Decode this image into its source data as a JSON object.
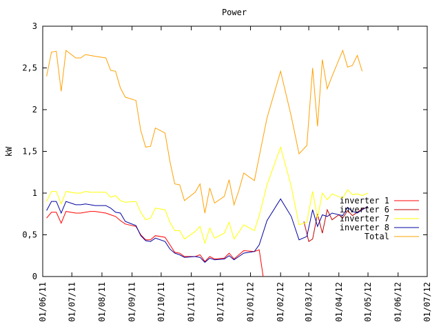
{
  "chart_data": {
    "type": "line",
    "title": "Power",
    "xlabel": "",
    "ylabel": "kW",
    "ylim": [
      0,
      3
    ],
    "yticks": [
      "0",
      "0,5",
      "1",
      "1,5",
      "2",
      "2,5",
      "3"
    ],
    "yticks_values": [
      0,
      0.5,
      1,
      1.5,
      2,
      2.5,
      3
    ],
    "xlim": [
      "2011-06-01",
      "2012-07-01"
    ],
    "xticks": [
      "01/06/11",
      "01/07/11",
      "01/08/11",
      "01/09/11",
      "01/10/11",
      "01/11/11",
      "01/12/11",
      "01/01/12",
      "01/02/12",
      "01/03/12",
      "01/04/12",
      "01/05/12",
      "01/06/12",
      "01/07/12"
    ],
    "xticks_dates": [
      "2011-06-01",
      "2011-07-01",
      "2011-08-01",
      "2011-09-01",
      "2011-10-01",
      "2011-11-01",
      "2011-12-01",
      "2012-01-01",
      "2012-02-01",
      "2012-03-01",
      "2012-04-01",
      "2012-05-01",
      "2012-06-01",
      "2012-07-01"
    ],
    "grid": false,
    "legend_position": "right",
    "series": [
      {
        "name": "inverter 1",
        "color": "#ff0000",
        "points": [
          [
            "2011-06-05",
            0.7
          ],
          [
            "2011-06-10",
            0.77
          ],
          [
            "2011-06-15",
            0.77
          ],
          [
            "2011-06-20",
            0.64
          ],
          [
            "2011-06-25",
            0.78
          ],
          [
            "2011-07-05",
            0.76
          ],
          [
            "2011-07-10",
            0.76
          ],
          [
            "2011-07-15",
            0.77
          ],
          [
            "2011-07-20",
            0.78
          ],
          [
            "2011-07-25",
            0.78
          ],
          [
            "2011-08-05",
            0.76
          ],
          [
            "2011-08-10",
            0.74
          ],
          [
            "2011-08-15",
            0.72
          ],
          [
            "2011-08-20",
            0.67
          ],
          [
            "2011-08-25",
            0.63
          ],
          [
            "2011-09-05",
            0.6
          ],
          [
            "2011-09-10",
            0.5
          ],
          [
            "2011-09-15",
            0.44
          ],
          [
            "2011-09-20",
            0.44
          ],
          [
            "2011-09-25",
            0.49
          ],
          [
            "2011-10-05",
            0.47
          ],
          [
            "2011-10-10",
            0.38
          ],
          [
            "2011-10-15",
            0.29
          ],
          [
            "2011-10-20",
            0.28
          ],
          [
            "2011-10-25",
            0.24
          ],
          [
            "2011-11-05",
            0.24
          ],
          [
            "2011-11-10",
            0.26
          ],
          [
            "2011-11-15",
            0.18
          ],
          [
            "2011-11-20",
            0.24
          ],
          [
            "2011-11-25",
            0.21
          ],
          [
            "2011-12-05",
            0.22
          ],
          [
            "2011-12-10",
            0.28
          ],
          [
            "2011-12-15",
            0.21
          ],
          [
            "2011-12-20",
            0.26
          ],
          [
            "2011-12-25",
            0.31
          ],
          [
            "2012-01-05",
            0.3
          ],
          [
            "2012-01-10",
            0.32
          ],
          [
            "2012-01-14",
            0.0
          ]
        ]
      },
      {
        "name": "inverter 6",
        "color": "#c00000",
        "points": [
          [
            "2012-02-25",
            0.66
          ],
          [
            "2012-03-01",
            0.42
          ],
          [
            "2012-03-05",
            0.45
          ],
          [
            "2012-03-10",
            0.75
          ],
          [
            "2012-03-15",
            0.52
          ],
          [
            "2012-03-20",
            0.8
          ],
          [
            "2012-03-25",
            0.68
          ],
          [
            "2012-04-01",
            0.74
          ],
          [
            "2012-04-05",
            0.7
          ],
          [
            "2012-04-10",
            0.79
          ],
          [
            "2012-04-15",
            0.73
          ],
          [
            "2012-04-20",
            0.77
          ],
          [
            "2012-04-25",
            0.81
          ],
          [
            "2012-05-01",
            0.83
          ]
        ]
      },
      {
        "name": "inverter 7",
        "color": "#ffff00",
        "points": [
          [
            "2011-06-05",
            0.9
          ],
          [
            "2011-06-10",
            1.02
          ],
          [
            "2011-06-15",
            1.02
          ],
          [
            "2011-06-20",
            0.87
          ],
          [
            "2011-06-25",
            1.02
          ],
          [
            "2011-07-05",
            1.0
          ],
          [
            "2011-07-10",
            1.0
          ],
          [
            "2011-07-15",
            1.02
          ],
          [
            "2011-07-20",
            1.01
          ],
          [
            "2011-07-25",
            1.01
          ],
          [
            "2011-08-05",
            1.01
          ],
          [
            "2011-08-10",
            0.95
          ],
          [
            "2011-08-15",
            0.97
          ],
          [
            "2011-08-20",
            0.91
          ],
          [
            "2011-08-25",
            0.89
          ],
          [
            "2011-09-05",
            0.9
          ],
          [
            "2011-09-10",
            0.77
          ],
          [
            "2011-09-15",
            0.68
          ],
          [
            "2011-09-20",
            0.7
          ],
          [
            "2011-09-25",
            0.82
          ],
          [
            "2011-10-05",
            0.8
          ],
          [
            "2011-10-10",
            0.65
          ],
          [
            "2011-10-15",
            0.55
          ],
          [
            "2011-10-20",
            0.55
          ],
          [
            "2011-10-25",
            0.45
          ],
          [
            "2011-11-05",
            0.54
          ],
          [
            "2011-11-10",
            0.6
          ],
          [
            "2011-11-15",
            0.4
          ],
          [
            "2011-11-20",
            0.58
          ],
          [
            "2011-11-25",
            0.46
          ],
          [
            "2011-12-05",
            0.52
          ],
          [
            "2011-12-10",
            0.65
          ],
          [
            "2011-12-15",
            0.45
          ],
          [
            "2011-12-20",
            0.53
          ],
          [
            "2011-12-25",
            0.62
          ],
          [
            "2012-01-05",
            0.55
          ],
          [
            "2012-01-10",
            0.73
          ],
          [
            "2012-01-18",
            1.1
          ],
          [
            "2012-02-01",
            1.55
          ],
          [
            "2012-02-12",
            1.08
          ],
          [
            "2012-02-20",
            0.62
          ],
          [
            "2012-02-28",
            0.65
          ],
          [
            "2012-03-05",
            1.02
          ],
          [
            "2012-03-10",
            0.7
          ],
          [
            "2012-03-15",
            1.0
          ],
          [
            "2012-03-20",
            0.92
          ],
          [
            "2012-03-25",
            0.99
          ],
          [
            "2012-04-05",
            0.94
          ],
          [
            "2012-04-10",
            1.04
          ],
          [
            "2012-04-15",
            0.98
          ],
          [
            "2012-04-20",
            0.99
          ],
          [
            "2012-04-25",
            0.97
          ],
          [
            "2012-05-01",
            1.0
          ]
        ]
      },
      {
        "name": "inverter 8",
        "color": "#0000a0",
        "points": [
          [
            "2011-06-05",
            0.79
          ],
          [
            "2011-06-10",
            0.9
          ],
          [
            "2011-06-15",
            0.9
          ],
          [
            "2011-06-20",
            0.76
          ],
          [
            "2011-06-25",
            0.9
          ],
          [
            "2011-07-05",
            0.86
          ],
          [
            "2011-07-10",
            0.86
          ],
          [
            "2011-07-15",
            0.87
          ],
          [
            "2011-07-20",
            0.86
          ],
          [
            "2011-07-25",
            0.85
          ],
          [
            "2011-08-05",
            0.85
          ],
          [
            "2011-08-10",
            0.82
          ],
          [
            "2011-08-15",
            0.77
          ],
          [
            "2011-08-20",
            0.76
          ],
          [
            "2011-08-25",
            0.66
          ],
          [
            "2011-09-05",
            0.61
          ],
          [
            "2011-09-10",
            0.49
          ],
          [
            "2011-09-15",
            0.43
          ],
          [
            "2011-09-20",
            0.42
          ],
          [
            "2011-09-25",
            0.46
          ],
          [
            "2011-10-05",
            0.42
          ],
          [
            "2011-10-10",
            0.33
          ],
          [
            "2011-10-15",
            0.28
          ],
          [
            "2011-10-20",
            0.26
          ],
          [
            "2011-10-25",
            0.23
          ],
          [
            "2011-11-05",
            0.24
          ],
          [
            "2011-11-10",
            0.23
          ],
          [
            "2011-11-15",
            0.17
          ],
          [
            "2011-11-20",
            0.22
          ],
          [
            "2011-11-25",
            0.2
          ],
          [
            "2011-12-05",
            0.21
          ],
          [
            "2011-12-10",
            0.25
          ],
          [
            "2011-12-15",
            0.2
          ],
          [
            "2011-12-20",
            0.24
          ],
          [
            "2011-12-25",
            0.28
          ],
          [
            "2012-01-05",
            0.3
          ],
          [
            "2012-01-10",
            0.38
          ],
          [
            "2012-01-18",
            0.67
          ],
          [
            "2012-02-01",
            0.93
          ],
          [
            "2012-02-12",
            0.72
          ],
          [
            "2012-02-20",
            0.44
          ],
          [
            "2012-02-28",
            0.48
          ],
          [
            "2012-03-05",
            0.8
          ],
          [
            "2012-03-10",
            0.6
          ],
          [
            "2012-03-15",
            0.74
          ],
          [
            "2012-03-20",
            0.72
          ],
          [
            "2012-03-25",
            0.76
          ],
          [
            "2012-04-05",
            0.73
          ],
          [
            "2012-04-10",
            0.83
          ],
          [
            "2012-04-15",
            0.78
          ],
          [
            "2012-04-20",
            0.76
          ],
          [
            "2012-04-25",
            0.8
          ],
          [
            "2012-05-01",
            0.84
          ]
        ]
      },
      {
        "name": "Total",
        "color": "#ffa000",
        "points": [
          [
            "2011-06-05",
            2.4
          ],
          [
            "2011-06-10",
            2.69
          ],
          [
            "2011-06-15",
            2.7
          ],
          [
            "2011-06-20",
            2.22
          ],
          [
            "2011-06-25",
            2.71
          ],
          [
            "2011-07-05",
            2.62
          ],
          [
            "2011-07-10",
            2.62
          ],
          [
            "2011-07-15",
            2.66
          ],
          [
            "2011-07-20",
            2.65
          ],
          [
            "2011-07-25",
            2.64
          ],
          [
            "2011-08-05",
            2.62
          ],
          [
            "2011-08-10",
            2.47
          ],
          [
            "2011-08-15",
            2.46
          ],
          [
            "2011-08-20",
            2.26
          ],
          [
            "2011-08-25",
            2.15
          ],
          [
            "2011-09-05",
            2.11
          ],
          [
            "2011-09-10",
            1.75
          ],
          [
            "2011-09-15",
            1.55
          ],
          [
            "2011-09-20",
            1.56
          ],
          [
            "2011-09-25",
            1.78
          ],
          [
            "2011-10-05",
            1.72
          ],
          [
            "2011-10-10",
            1.38
          ],
          [
            "2011-10-15",
            1.11
          ],
          [
            "2011-10-20",
            1.1
          ],
          [
            "2011-10-25",
            0.91
          ],
          [
            "2011-11-05",
            1.01
          ],
          [
            "2011-11-10",
            1.11
          ],
          [
            "2011-11-15",
            0.76
          ],
          [
            "2011-11-20",
            1.06
          ],
          [
            "2011-11-25",
            0.88
          ],
          [
            "2011-12-05",
            0.96
          ],
          [
            "2011-12-10",
            1.16
          ],
          [
            "2011-12-15",
            0.86
          ],
          [
            "2011-12-20",
            1.03
          ],
          [
            "2011-12-25",
            1.24
          ],
          [
            "2012-01-05",
            1.15
          ],
          [
            "2012-01-10",
            1.44
          ],
          [
            "2012-01-18",
            1.9
          ],
          [
            "2012-02-01",
            2.46
          ],
          [
            "2012-02-12",
            1.92
          ],
          [
            "2012-02-20",
            1.47
          ],
          [
            "2012-02-28",
            1.57
          ],
          [
            "2012-03-05",
            2.5
          ],
          [
            "2012-03-10",
            1.8
          ],
          [
            "2012-03-15",
            2.6
          ],
          [
            "2012-03-20",
            2.25
          ],
          [
            "2012-03-25",
            2.4
          ],
          [
            "2012-04-05",
            2.71
          ],
          [
            "2012-04-10",
            2.51
          ],
          [
            "2012-04-15",
            2.53
          ],
          [
            "2012-04-20",
            2.65
          ],
          [
            "2012-04-25",
            2.46
          ]
        ]
      }
    ]
  }
}
